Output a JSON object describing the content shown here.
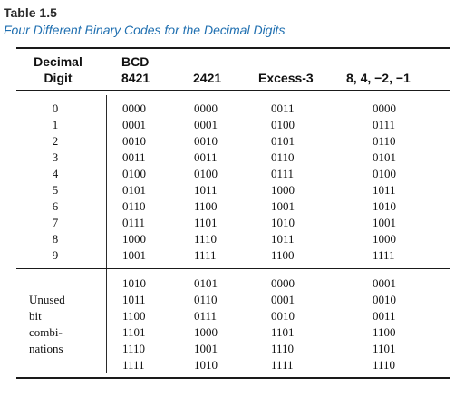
{
  "caption": {
    "label": "Table 1.5",
    "title": "Four Different Binary Codes for the Decimal Digits"
  },
  "headers": {
    "digit_line1": "Decimal",
    "digit_line2": "Digit",
    "bcd_line1": "BCD",
    "bcd_line2": "8421",
    "c2421": "2421",
    "excess3": "Excess-3",
    "c842": "8, 4, −2, −1"
  },
  "rows": [
    {
      "digit": "0",
      "bcd": "0000",
      "c2421": "0000",
      "excess3": "0011",
      "c842": "0000"
    },
    {
      "digit": "1",
      "bcd": "0001",
      "c2421": "0001",
      "excess3": "0100",
      "c842": "0111"
    },
    {
      "digit": "2",
      "bcd": "0010",
      "c2421": "0010",
      "excess3": "0101",
      "c842": "0110"
    },
    {
      "digit": "3",
      "bcd": "0011",
      "c2421": "0011",
      "excess3": "0110",
      "c842": "0101"
    },
    {
      "digit": "4",
      "bcd": "0100",
      "c2421": "0100",
      "excess3": "0111",
      "c842": "0100"
    },
    {
      "digit": "5",
      "bcd": "0101",
      "c2421": "1011",
      "excess3": "1000",
      "c842": "1011"
    },
    {
      "digit": "6",
      "bcd": "0110",
      "c2421": "1100",
      "excess3": "1001",
      "c842": "1010"
    },
    {
      "digit": "7",
      "bcd": "0111",
      "c2421": "1101",
      "excess3": "1010",
      "c842": "1001"
    },
    {
      "digit": "8",
      "bcd": "1000",
      "c2421": "1110",
      "excess3": "1011",
      "c842": "1000"
    },
    {
      "digit": "9",
      "bcd": "1001",
      "c2421": "1111",
      "excess3": "1100",
      "c842": "1111"
    }
  ],
  "unused": {
    "label_lines": [
      "Unused",
      "bit",
      "combi-",
      "nations"
    ],
    "bcd": [
      "1010",
      "1011",
      "1100",
      "1101",
      "1110",
      "1111"
    ],
    "c2421": [
      "0101",
      "0110",
      "0111",
      "1000",
      "1001",
      "1010"
    ],
    "excess3": [
      "0000",
      "0001",
      "0010",
      "1101",
      "1110",
      "1111"
    ],
    "c842": [
      "0001",
      "0010",
      "0011",
      "1100",
      "1101",
      "1110"
    ]
  }
}
